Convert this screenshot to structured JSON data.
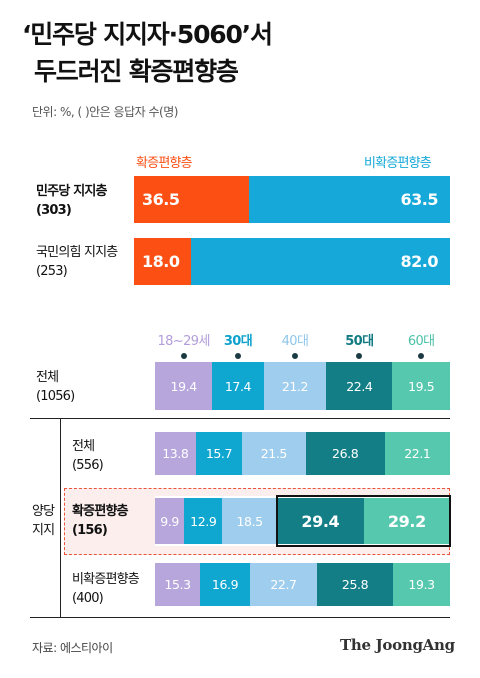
{
  "title_line1": "‘민주당 지지자·5060’서",
  "title_line2": "두드러진 확증편향층",
  "unit_note": "단위: %, (  )안은 응답자 수(명)",
  "colors": {
    "confirm": "#fb4f14",
    "nonconfirm": "#15a8d8",
    "age_18_29": "#b6a6dc",
    "age_30s": "#0fa6cf",
    "age_40s": "#9fcdee",
    "age_50s": "#137e86",
    "age_60s": "#56c8ad",
    "age_label_18_29": "#b39ddb",
    "age_label_30s": "#0ea2cc",
    "age_label_40s": "#8ec6ea",
    "age_label_50s": "#127a82",
    "age_label_60s": "#4cc1a7",
    "highlight_border": "#e8553a",
    "highlight_bg": "#fdeeee"
  },
  "chart_data": [
    {
      "type": "bar",
      "stacked": true,
      "orientation": "horizontal",
      "legend": [
        "확증편향층",
        "비확증편향층"
      ],
      "legend_placement": "top",
      "categories": [
        {
          "name": "민주당 지지층",
          "n": "(303)"
        },
        {
          "name": "국민의힘 지지층",
          "n": "(253)"
        }
      ],
      "series": [
        {
          "name": "확증편향층",
          "values": [
            36.5,
            18.0
          ],
          "labels": [
            "36.5",
            "18.0"
          ]
        },
        {
          "name": "비확증편향층",
          "values": [
            63.5,
            82.0
          ],
          "labels": [
            "63.5",
            "82.0"
          ]
        }
      ]
    },
    {
      "type": "bar",
      "stacked": true,
      "orientation": "horizontal",
      "legend": [
        "18~29세",
        "30대",
        "40대",
        "50대",
        "60대"
      ],
      "legend_placement": "top",
      "group_label": "양당 지지",
      "rows": [
        {
          "name": "전체",
          "n": "(1056)",
          "values": [
            19.4,
            17.4,
            21.2,
            22.4,
            19.5
          ],
          "labels": [
            "19.4",
            "17.4",
            "21.2",
            "22.4",
            "19.5"
          ]
        },
        {
          "name": "전체",
          "n": "(556)",
          "values": [
            13.8,
            15.7,
            21.5,
            26.8,
            22.1
          ],
          "labels": [
            "13.8",
            "15.7",
            "21.5",
            "26.8",
            "22.1"
          ]
        },
        {
          "name": "확증편향층",
          "n": "(156)",
          "values": [
            9.9,
            12.9,
            18.5,
            29.4,
            29.2
          ],
          "labels": [
            "9.9",
            "12.9",
            "18.5",
            "29.4",
            "29.2"
          ]
        },
        {
          "name": "비확증편향층",
          "n": "(400)",
          "values": [
            15.3,
            16.9,
            22.7,
            25.8,
            19.3
          ],
          "labels": [
            "15.3",
            "16.9",
            "22.7",
            "25.8",
            "19.3"
          ]
        }
      ]
    }
  ],
  "source": "자료: 에스티아이",
  "logo": "The JoongAng"
}
